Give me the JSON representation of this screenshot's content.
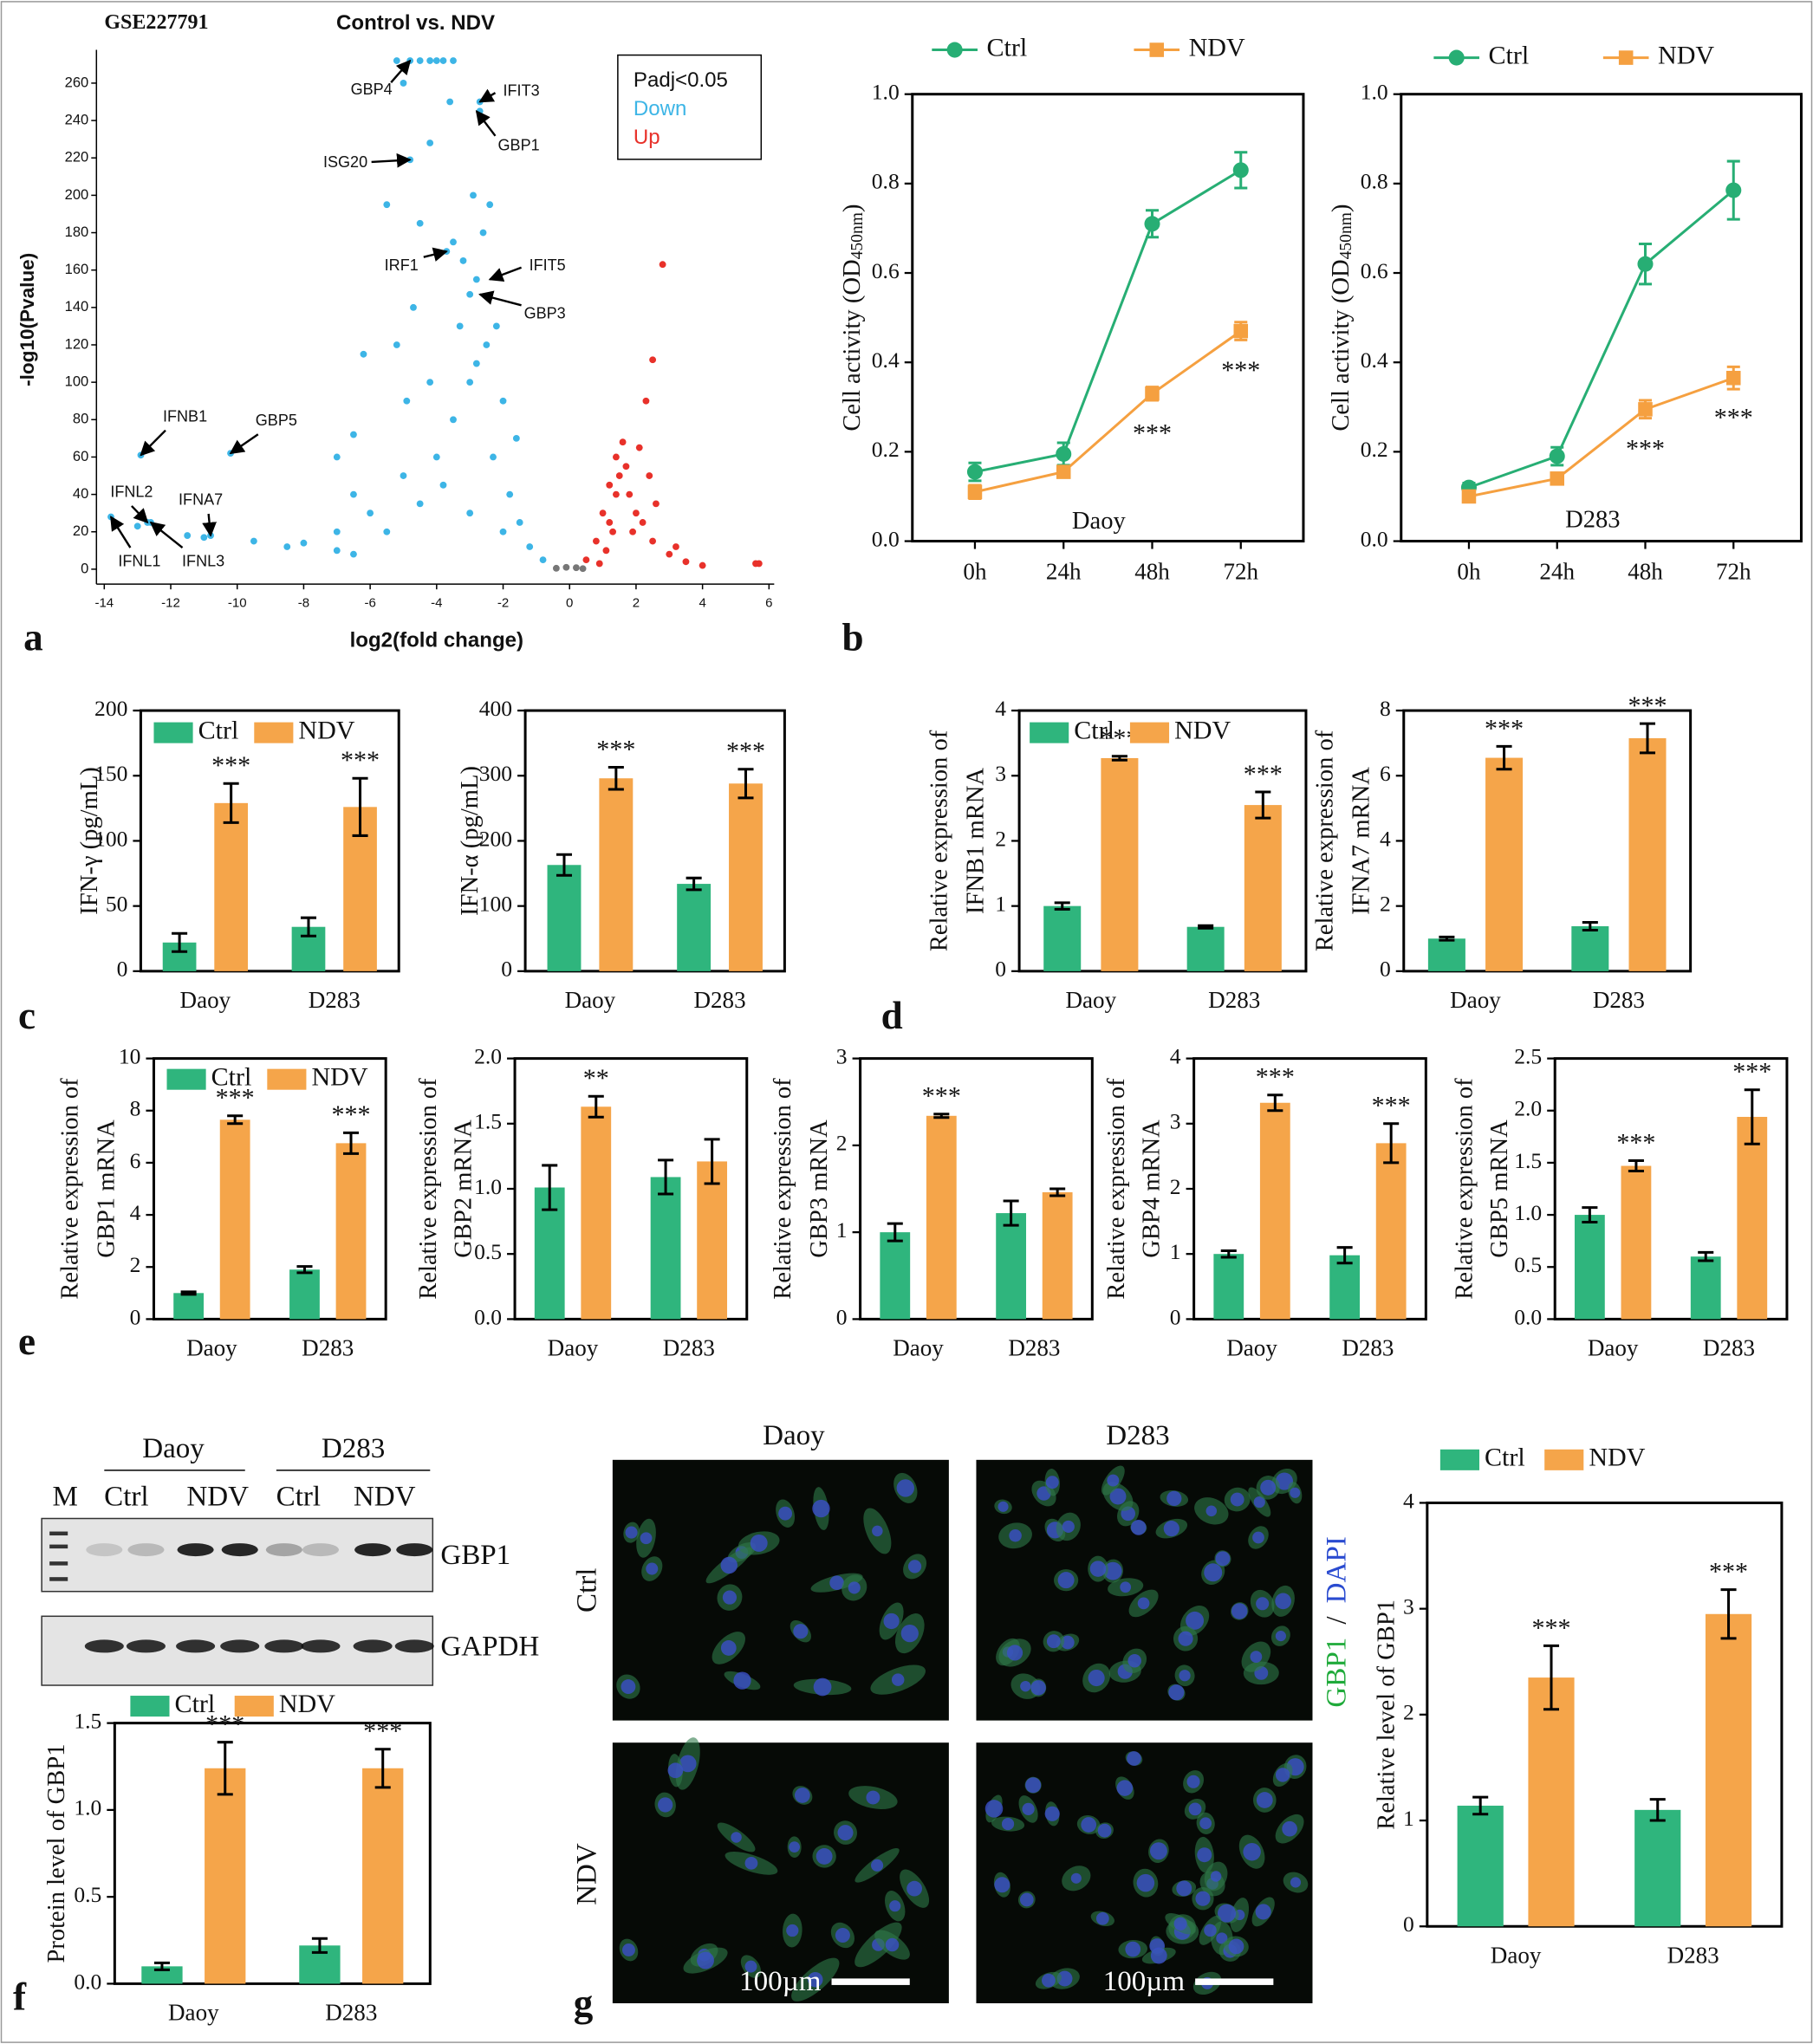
{
  "panel_labels": [
    "a",
    "b",
    "c",
    "d",
    "e",
    "f",
    "g"
  ],
  "chart_data": [
    {
      "type": "scatter",
      "title": "GSE227791",
      "subtitle": "Control vs. NDV",
      "x_label": "log2(fold change)",
      "y_label": "-log10(Pvalue)",
      "legend_title": "Padj<0.05",
      "legend": "upper right",
      "xlim": [
        -14,
        6
      ],
      "ylim": [
        -8,
        275
      ],
      "xticks": [
        -14,
        -12,
        -10,
        -8,
        -6,
        -4,
        -2,
        0,
        2,
        4,
        6
      ],
      "yticks": [
        0,
        20,
        40,
        60,
        80,
        100,
        120,
        140,
        160,
        180,
        200,
        220,
        240,
        260
      ],
      "series": [
        {
          "name": "Down",
          "color": "#3db5e6",
          "x": [
            -13.8,
            -13,
            -12.7,
            -12.6,
            -12.9,
            -10.2,
            -10.8,
            -11.5,
            -11,
            -9.5,
            -8.5,
            -8,
            -7,
            -6.5,
            -6.2,
            -5.5,
            -5,
            -4.8,
            -4.5,
            -4.2,
            -4,
            -3.8,
            -3.5,
            -5.2,
            -4.8,
            -4.5,
            -4.7,
            -3.7,
            -3.2,
            -2.8,
            -3.5,
            -3,
            -2.7,
            -2.7,
            -2.4,
            -3,
            -3.5,
            -4,
            -5,
            -6,
            -7,
            -2.5,
            -2,
            -2.3,
            -1.8,
            -1.5,
            -1.2,
            -0.8,
            -2,
            -3,
            -3.8,
            -4.5,
            -5.5,
            -6.5,
            -1.6,
            -2.2,
            -2.8,
            -3.3,
            -4.2,
            -4.9,
            -5.2,
            -6.5,
            -7,
            -2.6,
            -2.9,
            -3.6,
            -4.2
          ],
          "y": [
            28,
            23,
            25,
            25,
            61,
            62,
            18,
            18,
            17,
            15,
            12,
            14,
            10,
            40,
            115,
            195,
            260,
            272,
            272,
            272,
            272,
            272,
            272,
            272,
            219,
            185,
            140,
            170,
            165,
            155,
            175,
            147,
            250,
            245,
            195,
            100,
            80,
            60,
            50,
            30,
            20,
            120,
            90,
            60,
            40,
            25,
            12,
            5,
            20,
            30,
            45,
            35,
            20,
            8,
            70,
            130,
            110,
            130,
            100,
            90,
            120,
            72,
            60,
            180,
            200,
            250,
            228
          ]
        },
        {
          "name": "Up",
          "color": "#e8312a",
          "x": [
            0.5,
            0.8,
            1,
            1.2,
            1.4,
            1.6,
            1.5,
            1.8,
            2,
            2.2,
            2.5,
            3,
            3.5,
            4,
            5.6,
            5.7,
            2.8,
            2.5,
            2.3,
            1.3,
            1.1,
            0.9,
            1.7,
            2.1,
            1.9,
            2.6,
            1.4,
            1.2,
            2.4,
            3.2
          ],
          "y": [
            5,
            15,
            30,
            45,
            60,
            68,
            50,
            40,
            30,
            25,
            15,
            8,
            4,
            2,
            3,
            3,
            163,
            112,
            90,
            20,
            10,
            3,
            55,
            65,
            20,
            35,
            40,
            25,
            50,
            12
          ]
        },
        {
          "color": "#777777",
          "x": [
            -0.4,
            -0.1,
            0.2,
            0.4
          ],
          "y": [
            0.5,
            1,
            0.8,
            0.3
          ]
        }
      ],
      "annotations": [
        {
          "text": "GBP4",
          "x": -4.8,
          "y": 272
        },
        {
          "text": "IFIT3",
          "x": -2.7,
          "y": 250
        },
        {
          "text": "GBP1",
          "x": -2.8,
          "y": 245
        },
        {
          "text": "ISG20",
          "x": -4.8,
          "y": 219
        },
        {
          "text": "IRF1",
          "x": -3.7,
          "y": 170
        },
        {
          "text": "IFIT5",
          "x": -2.4,
          "y": 155
        },
        {
          "text": "GBP3",
          "x": -2.7,
          "y": 147
        },
        {
          "text": "IFNB1",
          "x": -12.9,
          "y": 61
        },
        {
          "text": "GBP5",
          "x": -10.2,
          "y": 62
        },
        {
          "text": "IFNL2",
          "x": -12.7,
          "y": 25
        },
        {
          "text": "IFNA7",
          "x": -10.8,
          "y": 18
        },
        {
          "text": "IFNL1",
          "x": -13.8,
          "y": 28
        },
        {
          "text": "IFNL3",
          "x": -12.6,
          "y": 25
        }
      ]
    },
    {
      "type": "line",
      "cell_line": "Daoy",
      "y_label": "Cell activity (OD",
      "y_label_subscript": "450nm",
      "y_label_end": ")",
      "categories": [
        "0h",
        "24h",
        "48h",
        "72h"
      ],
      "ylim": [
        0,
        1
      ],
      "yticks": [
        {
          "value": 0,
          "label": "0.0"
        },
        0.2,
        0.4,
        0.6,
        0.8,
        {
          "value": 1,
          "label": "1.0"
        }
      ],
      "legend": "top",
      "series": [
        {
          "name": "Ctrl",
          "color": "#27ae74",
          "marker": "circle",
          "values": [
            0.155,
            0.195,
            0.71,
            0.83
          ],
          "errors": [
            0.02,
            0.025,
            0.03,
            0.04
          ]
        },
        {
          "name": "NDV",
          "color": "#f5a040",
          "marker": "square",
          "values": [
            0.11,
            0.155,
            0.33,
            0.47
          ],
          "errors": [
            0.015,
            0.01,
            0.015,
            0.02
          ],
          "significance": [
            null,
            null,
            "***",
            "***"
          ]
        }
      ]
    },
    {
      "type": "line",
      "cell_line": "D283",
      "y_label": "Cell activity (OD",
      "y_label_subscript": "450nm",
      "y_label_end": ")",
      "categories": [
        "0h",
        "24h",
        "48h",
        "72h"
      ],
      "ylim": [
        0,
        1
      ],
      "yticks": [
        {
          "value": 0,
          "label": "0.0"
        },
        0.2,
        0.4,
        0.6,
        0.8,
        {
          "value": 1,
          "label": "1.0"
        }
      ],
      "legend": "top",
      "series": [
        {
          "name": "Ctrl",
          "color": "#27ae74",
          "marker": "circle",
          "values": [
            0.12,
            0.19,
            0.62,
            0.785
          ],
          "errors": [
            0.01,
            0.02,
            0.045,
            0.065
          ]
        },
        {
          "name": "NDV",
          "color": "#f5a040",
          "marker": "square",
          "values": [
            0.1,
            0.14,
            0.295,
            0.365
          ],
          "errors": [
            0.01,
            0.01,
            0.02,
            0.025
          ],
          "significance": [
            null,
            null,
            "***",
            "***"
          ]
        }
      ]
    },
    {
      "type": "bar",
      "y_label": [
        "IFN-γ (pg/mL)"
      ],
      "categories": [
        "Daoy",
        "D283"
      ],
      "ylim": [
        0,
        200
      ],
      "yticks": [
        0,
        50,
        100,
        150,
        200
      ],
      "legend": "top",
      "series": [
        {
          "name": "Ctrl",
          "color": "#2fb57d",
          "values": [
            22,
            34
          ],
          "errors": [
            7,
            7
          ]
        },
        {
          "name": "NDV",
          "color": "#f5a54a",
          "values": [
            129,
            126
          ],
          "errors": [
            15,
            22
          ],
          "significance": [
            "***",
            "***"
          ]
        }
      ]
    },
    {
      "type": "bar",
      "y_label": [
        "IFN-α (pg/mL)"
      ],
      "categories": [
        "Daoy",
        "D283"
      ],
      "ylim": [
        0,
        400
      ],
      "yticks": [
        0,
        100,
        200,
        300,
        400
      ],
      "series": [
        {
          "color": "#2fb57d",
          "values": [
            163,
            134
          ],
          "errors": [
            16,
            9
          ]
        },
        {
          "color": "#f5a54a",
          "values": [
            296,
            288
          ],
          "errors": [
            17,
            22
          ],
          "significance": [
            "***",
            "***"
          ]
        }
      ]
    },
    {
      "type": "bar",
      "y_label": [
        "Relative expression of",
        "IFNB1 mRNA"
      ],
      "categories": [
        "Daoy",
        "D283"
      ],
      "ylim": [
        0,
        4
      ],
      "yticks": [
        0,
        1,
        2,
        3,
        4
      ],
      "legend": "top",
      "series": [
        {
          "name": "Ctrl",
          "color": "#2fb57d",
          "values": [
            1.0,
            0.68
          ],
          "errors": [
            0.05,
            0.02
          ]
        },
        {
          "name": "NDV",
          "color": "#f5a54a",
          "values": [
            3.27,
            2.55
          ],
          "errors": [
            0.03,
            0.2
          ],
          "significance": [
            "***",
            "***"
          ]
        }
      ]
    },
    {
      "type": "bar",
      "y_label": [
        "Relative expression of",
        "IFNA7 mRNA"
      ],
      "categories": [
        "Daoy",
        "D283"
      ],
      "ylim": [
        0,
        8
      ],
      "yticks": [
        0,
        2,
        4,
        6,
        8
      ],
      "series": [
        {
          "color": "#2fb57d",
          "values": [
            1.0,
            1.38
          ],
          "errors": [
            0.05,
            0.12
          ]
        },
        {
          "color": "#f5a54a",
          "values": [
            6.55,
            7.15
          ],
          "errors": [
            0.35,
            0.45
          ],
          "significance": [
            "***",
            "***"
          ]
        }
      ]
    },
    {
      "type": "bar",
      "y_label": [
        "Relative expression of",
        "GBP1 mRNA"
      ],
      "categories": [
        "Daoy",
        "D283"
      ],
      "ylim": [
        0,
        10
      ],
      "yticks": [
        0,
        2,
        4,
        6,
        8,
        10
      ],
      "legend": "top",
      "series": [
        {
          "name": "Ctrl",
          "color": "#2fb57d",
          "values": [
            1.0,
            1.9
          ],
          "errors": [
            0.05,
            0.12
          ]
        },
        {
          "name": "NDV",
          "color": "#f5a54a",
          "values": [
            7.65,
            6.75
          ],
          "errors": [
            0.15,
            0.4
          ],
          "significance": [
            "***",
            "***"
          ]
        }
      ]
    },
    {
      "type": "bar",
      "y_label": [
        "Relative expression of",
        "GBP2 mRNA"
      ],
      "categories": [
        "Daoy",
        "D283"
      ],
      "ylim": [
        0,
        2
      ],
      "yticks": [
        {
          "value": 0,
          "label": "0.0"
        },
        0.5,
        {
          "value": 1,
          "label": "1.0"
        },
        1.5,
        {
          "value": 2,
          "label": "2.0"
        }
      ],
      "series": [
        {
          "color": "#2fb57d",
          "values": [
            1.01,
            1.09
          ],
          "errors": [
            0.17,
            0.13
          ]
        },
        {
          "color": "#f5a54a",
          "values": [
            1.63,
            1.21
          ],
          "errors": [
            0.08,
            0.17
          ],
          "significance": [
            "**",
            null
          ]
        }
      ]
    },
    {
      "type": "bar",
      "y_label": [
        "Relative expression of",
        "GBP3 mRNA"
      ],
      "categories": [
        "Daoy",
        "D283"
      ],
      "ylim": [
        0,
        3
      ],
      "yticks": [
        0,
        1,
        2,
        3
      ],
      "series": [
        {
          "color": "#2fb57d",
          "values": [
            1.0,
            1.22
          ],
          "errors": [
            0.1,
            0.14
          ]
        },
        {
          "color": "#f5a54a",
          "values": [
            2.34,
            1.46
          ],
          "errors": [
            0.02,
            0.04
          ],
          "significance": [
            "***",
            null
          ]
        }
      ]
    },
    {
      "type": "bar",
      "y_label": [
        "Relative expression of",
        "GBP4 mRNA"
      ],
      "categories": [
        "Daoy",
        "D283"
      ],
      "ylim": [
        0,
        4
      ],
      "yticks": [
        0,
        1,
        2,
        3,
        4
      ],
      "series": [
        {
          "color": "#2fb57d",
          "values": [
            1.0,
            0.98
          ],
          "errors": [
            0.05,
            0.12
          ]
        },
        {
          "color": "#f5a54a",
          "values": [
            3.32,
            2.7
          ],
          "errors": [
            0.12,
            0.3
          ],
          "significance": [
            "***",
            "***"
          ]
        }
      ]
    },
    {
      "type": "bar",
      "y_label": [
        "Relative expression of",
        "GBP5 mRNA"
      ],
      "categories": [
        "Daoy",
        "D283"
      ],
      "ylim": [
        0,
        2.5
      ],
      "yticks": [
        {
          "value": 0,
          "label": "0.0"
        },
        0.5,
        {
          "value": 1,
          "label": "1.0"
        },
        1.5,
        {
          "value": 2,
          "label": "2.0"
        },
        2.5
      ],
      "series": [
        {
          "color": "#2fb57d",
          "values": [
            1.0,
            0.6
          ],
          "errors": [
            0.07,
            0.04
          ]
        },
        {
          "color": "#f5a54a",
          "values": [
            1.47,
            1.94
          ],
          "errors": [
            0.05,
            0.26
          ],
          "significance": [
            "***",
            "***"
          ]
        }
      ]
    },
    {
      "type": "bar",
      "y_label": [
        "Protein level of GBP1"
      ],
      "categories": [
        "Daoy",
        "D283"
      ],
      "ylim": [
        0,
        1.5
      ],
      "yticks": [
        {
          "value": 0,
          "label": "0.0"
        },
        0.5,
        {
          "value": 1,
          "label": "1.0"
        },
        1.5
      ],
      "legend": "top",
      "series": [
        {
          "name": "Ctrl",
          "color": "#2fb57d",
          "values": [
            0.1,
            0.22
          ],
          "errors": [
            0.02,
            0.04
          ]
        },
        {
          "name": "NDV",
          "color": "#f5a54a",
          "values": [
            1.24,
            1.24
          ],
          "errors": [
            0.15,
            0.11
          ],
          "significance": [
            "***",
            "***"
          ]
        }
      ]
    },
    {
      "type": "bar",
      "y_label": [
        "Relative level of GBP1"
      ],
      "categories": [
        "Daoy",
        "D283"
      ],
      "ylim": [
        0,
        4
      ],
      "yticks": [
        0,
        1,
        2,
        3,
        4
      ],
      "legend": "top",
      "series": [
        {
          "name": "Ctrl",
          "color": "#2fb57d",
          "values": [
            1.14,
            1.1
          ],
          "errors": [
            0.08,
            0.1
          ]
        },
        {
          "name": "NDV",
          "color": "#f5a54a",
          "values": [
            2.35,
            2.95
          ],
          "errors": [
            0.3,
            0.23
          ],
          "significance": [
            "***",
            "***"
          ]
        }
      ]
    }
  ],
  "blot": {
    "groups": [
      "Daoy",
      "D283"
    ],
    "marker": "M",
    "lanes": [
      "Ctrl",
      "NDV",
      "Ctrl",
      "NDV"
    ],
    "proteins": [
      "GBP1",
      "GAPDH"
    ]
  },
  "microscopy": {
    "columns": [
      "Daoy",
      "D283"
    ],
    "rows": [
      "Ctrl",
      "NDV"
    ],
    "stain": [
      "GBP1",
      "/",
      "DAPI"
    ],
    "scale_bar": "100µm"
  }
}
